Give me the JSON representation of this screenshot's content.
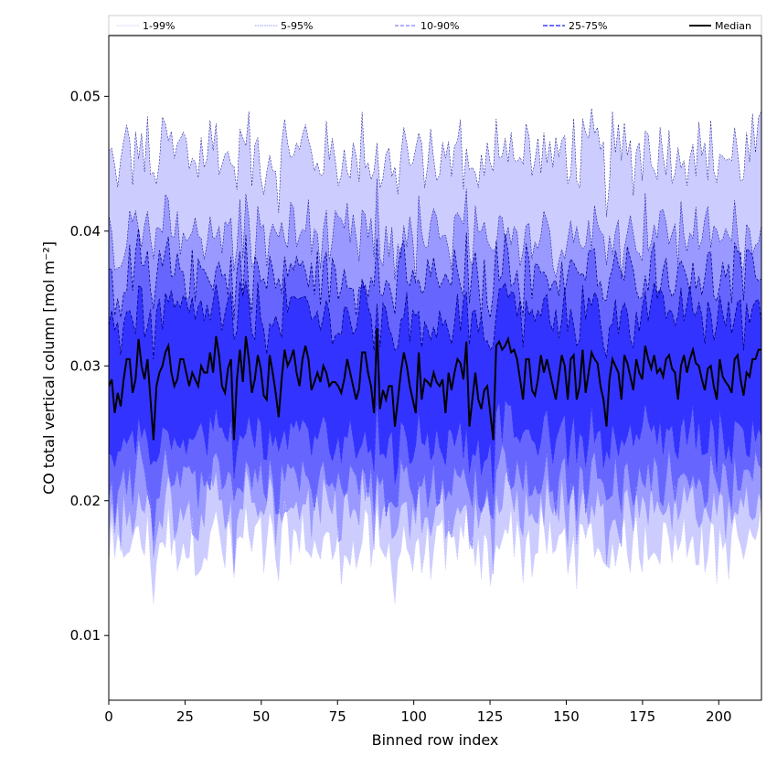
{
  "chart_data": {
    "type": "area",
    "xlabel": "Binned row index",
    "ylabel": "CO total vertical column [mol m⁻²]",
    "xlim": [
      0,
      214
    ],
    "ylim": [
      0.0052,
      0.0545
    ],
    "xticks": [
      0,
      25,
      50,
      75,
      100,
      125,
      150,
      175,
      200
    ],
    "yticks": [
      0.01,
      0.02,
      0.03,
      0.04,
      0.05
    ],
    "ytick_labels": [
      "0.01",
      "0.02",
      "0.03",
      "0.04",
      "0.05"
    ],
    "grid": false,
    "legend_position": "top",
    "x_range": [
      0,
      214
    ],
    "colors": {
      "band_1_99": "#ccccff",
      "band_5_95": "#9999ff",
      "band_10_90": "#6666ff",
      "band_25_75": "#3333ff",
      "median": "#000000",
      "edge": "#000080"
    },
    "legend": [
      "1-99%",
      "5-95%",
      "10-90%",
      "25-75%",
      "Median"
    ],
    "series": [
      {
        "name": "Median",
        "values": [
          0.0285,
          0.029,
          0.0265,
          0.028,
          0.027,
          0.029,
          0.0305,
          0.0305,
          0.028,
          0.029,
          0.032,
          0.03,
          0.029,
          0.0305,
          0.0275,
          0.0245,
          0.0285,
          0.0295,
          0.03,
          0.031,
          0.0315,
          0.0295,
          0.0285,
          0.029,
          0.0305,
          0.0305,
          0.0295,
          0.0285,
          0.0295,
          0.029,
          0.0285,
          0.03,
          0.0295,
          0.0295,
          0.031,
          0.0295,
          0.0322,
          0.0308,
          0.0285,
          0.028,
          0.0298,
          0.0305,
          0.0245,
          0.029,
          0.0312,
          0.0288,
          0.0322,
          0.0305,
          0.028,
          0.029,
          0.0308,
          0.0298,
          0.0278,
          0.0275,
          0.0308,
          0.0295,
          0.028,
          0.0262,
          0.029,
          0.0312,
          0.03,
          0.0305,
          0.0312,
          0.0295,
          0.0285,
          0.0305,
          0.0315,
          0.0305,
          0.0282,
          0.0288,
          0.0295,
          0.0288,
          0.03,
          0.0295,
          0.0285,
          0.0288,
          0.0288,
          0.0285,
          0.028,
          0.029,
          0.0305,
          0.0295,
          0.0285,
          0.0275,
          0.0283,
          0.031,
          0.031,
          0.0295,
          0.0285,
          0.0265,
          0.0328,
          0.0268,
          0.0282,
          0.0275,
          0.0285,
          0.0285,
          0.0255,
          0.0275,
          0.0295,
          0.031,
          0.03,
          0.0285,
          0.0275,
          0.0265,
          0.031,
          0.0275,
          0.029,
          0.0288,
          0.0285,
          0.0295,
          0.0288,
          0.0285,
          0.029,
          0.0265,
          0.0295,
          0.0282,
          0.0295,
          0.0305,
          0.0302,
          0.029,
          0.0318,
          0.0255,
          0.0275,
          0.0295,
          0.0275,
          0.0268,
          0.0282,
          0.0285,
          0.0265,
          0.0245,
          0.0315,
          0.0318,
          0.0312,
          0.0315,
          0.032,
          0.031,
          0.0312,
          0.0305,
          0.029,
          0.0275,
          0.0305,
          0.0305,
          0.0282,
          0.0278,
          0.029,
          0.0308,
          0.0295,
          0.0305,
          0.0295,
          0.0285,
          0.0275,
          0.0292,
          0.0308,
          0.03,
          0.0275,
          0.0305,
          0.0308,
          0.0275,
          0.0285,
          0.0312,
          0.028,
          0.0295,
          0.031,
          0.0305,
          0.0302,
          0.0285,
          0.0275,
          0.0255,
          0.029,
          0.0305,
          0.03,
          0.0295,
          0.0275,
          0.0308,
          0.0302,
          0.0292,
          0.0282,
          0.0305,
          0.0295,
          0.029,
          0.0315,
          0.0305,
          0.0298,
          0.0308,
          0.0295,
          0.0298,
          0.0292,
          0.0305,
          0.0308,
          0.0298,
          0.0295,
          0.0275,
          0.03,
          0.0308,
          0.0295,
          0.0305,
          0.0312,
          0.0302,
          0.03,
          0.029,
          0.0282,
          0.0298,
          0.03,
          0.0285,
          0.0275,
          0.0305,
          0.0292,
          0.0288,
          0.0285,
          0.028,
          0.0305,
          0.0308,
          0.029,
          0.0278,
          0.0295,
          0.0292,
          0.0305,
          0.0305,
          0.0312,
          0.0312
        ]
      }
    ],
    "bands": [
      {
        "name": "1-99%",
        "lower_mean": 0.0165,
        "lower_amp": 0.0022,
        "upper_mean": 0.0455,
        "upper_amp": 0.0025
      },
      {
        "name": "5-95%",
        "lower_mean": 0.0192,
        "lower_amp": 0.002,
        "upper_mean": 0.0395,
        "upper_amp": 0.0022
      },
      {
        "name": "10-90%",
        "lower_mean": 0.0212,
        "lower_amp": 0.0018,
        "upper_mean": 0.0365,
        "upper_amp": 0.002
      },
      {
        "name": "25-75%",
        "lower_mean": 0.0245,
        "lower_amp": 0.0015,
        "upper_mean": 0.0335,
        "upper_amp": 0.0018
      }
    ]
  }
}
